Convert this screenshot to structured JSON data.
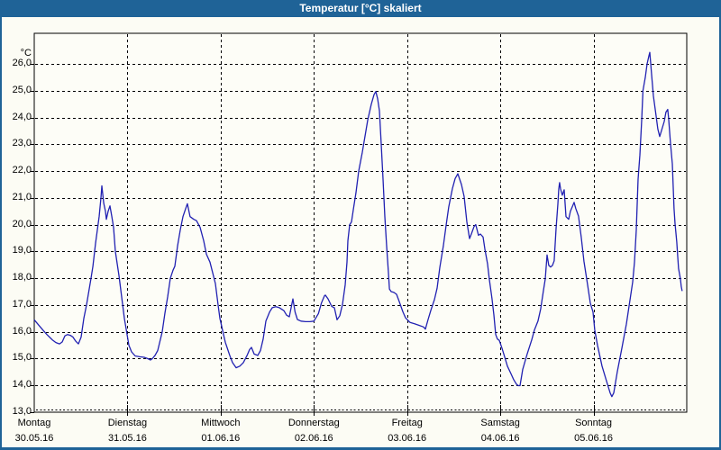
{
  "window": {
    "title": "Temperatur [°C] skaliert",
    "title_bar_color": "#1f6397",
    "background_color": "#fcfcf4"
  },
  "chart_data": {
    "type": "line",
    "title": "Temperatur [°C] skaliert",
    "y_unit": "°C",
    "ylim": [
      13.0,
      27.15
    ],
    "grid": "dashed",
    "legend": "none",
    "line_color": "#2121b2",
    "y_ticks": [
      {
        "v": 26,
        "label": "26,0"
      },
      {
        "v": 25,
        "label": "25,0"
      },
      {
        "v": 24,
        "label": "24,0"
      },
      {
        "v": 23,
        "label": "23,0"
      },
      {
        "v": 22,
        "label": "22,0"
      },
      {
        "v": 21,
        "label": "21,0"
      },
      {
        "v": 20,
        "label": "20,0"
      },
      {
        "v": 19,
        "label": "19,0"
      },
      {
        "v": 18,
        "label": "18,0"
      },
      {
        "v": 17,
        "label": "17,0"
      },
      {
        "v": 16,
        "label": "16,0"
      },
      {
        "v": 15,
        "label": "15,0"
      },
      {
        "v": 14,
        "label": "14,0"
      },
      {
        "v": 13,
        "label": "13,0"
      }
    ],
    "x_days": [
      {
        "name": "Montag",
        "date": "30.05.16"
      },
      {
        "name": "Dienstag",
        "date": "31.05.16"
      },
      {
        "name": "Mittwoch",
        "date": "01.06.16"
      },
      {
        "name": "Donnerstag",
        "date": "02.06.16"
      },
      {
        "name": "Freitag",
        "date": "03.06.16"
      },
      {
        "name": "Samstag",
        "date": "04.06.16"
      },
      {
        "name": "Sonntag",
        "date": "05.06.16"
      }
    ],
    "series": [
      {
        "name": "Temperatur [°C]",
        "x_unit": "days_since_30.05.16_00:00",
        "points": [
          [
            0.0,
            16.45
          ],
          [
            0.048,
            16.25
          ],
          [
            0.097,
            16.05
          ],
          [
            0.135,
            15.9
          ],
          [
            0.164,
            15.8
          ],
          [
            0.193,
            15.7
          ],
          [
            0.232,
            15.6
          ],
          [
            0.271,
            15.55
          ],
          [
            0.3,
            15.62
          ],
          [
            0.329,
            15.85
          ],
          [
            0.358,
            15.9
          ],
          [
            0.387,
            15.87
          ],
          [
            0.416,
            15.8
          ],
          [
            0.445,
            15.65
          ],
          [
            0.474,
            15.55
          ],
          [
            0.503,
            15.8
          ],
          [
            0.532,
            16.5
          ],
          [
            0.561,
            17.0
          ],
          [
            0.58,
            17.4
          ],
          [
            0.609,
            18.0
          ],
          [
            0.629,
            18.45
          ],
          [
            0.657,
            19.3
          ],
          [
            0.677,
            19.8
          ],
          [
            0.696,
            20.3
          ],
          [
            0.715,
            21.0
          ],
          [
            0.725,
            21.45
          ],
          [
            0.745,
            20.8
          ],
          [
            0.764,
            20.5
          ],
          [
            0.773,
            20.2
          ],
          [
            0.793,
            20.5
          ],
          [
            0.812,
            20.7
          ],
          [
            0.832,
            20.3
          ],
          [
            0.851,
            19.9
          ],
          [
            0.87,
            19.0
          ],
          [
            0.909,
            18.1
          ],
          [
            0.938,
            17.3
          ],
          [
            0.967,
            16.5
          ],
          [
            0.996,
            15.9
          ],
          [
            1.015,
            15.5
          ],
          [
            1.044,
            15.25
          ],
          [
            1.083,
            15.1
          ],
          [
            1.131,
            15.07
          ],
          [
            1.18,
            15.05
          ],
          [
            1.218,
            15.0
          ],
          [
            1.247,
            14.95
          ],
          [
            1.267,
            15.0
          ],
          [
            1.296,
            15.12
          ],
          [
            1.325,
            15.3
          ],
          [
            1.373,
            16.0
          ],
          [
            1.402,
            16.7
          ],
          [
            1.431,
            17.3
          ],
          [
            1.46,
            18.0
          ],
          [
            1.489,
            18.3
          ],
          [
            1.508,
            18.45
          ],
          [
            1.537,
            19.2
          ],
          [
            1.566,
            19.8
          ],
          [
            1.595,
            20.3
          ],
          [
            1.624,
            20.6
          ],
          [
            1.643,
            20.78
          ],
          [
            1.672,
            20.3
          ],
          [
            1.711,
            20.2
          ],
          [
            1.74,
            20.15
          ],
          [
            1.779,
            19.9
          ],
          [
            1.818,
            19.4
          ],
          [
            1.847,
            18.9
          ],
          [
            1.885,
            18.6
          ],
          [
            1.914,
            18.2
          ],
          [
            1.943,
            17.8
          ],
          [
            1.972,
            17.0
          ],
          [
            1.992,
            16.5
          ],
          [
            2.011,
            16.2
          ],
          [
            2.03,
            15.9
          ],
          [
            2.05,
            15.61
          ],
          [
            2.098,
            15.11
          ],
          [
            2.127,
            14.85
          ],
          [
            2.166,
            14.66
          ],
          [
            2.205,
            14.72
          ],
          [
            2.243,
            14.85
          ],
          [
            2.282,
            15.11
          ],
          [
            2.311,
            15.34
          ],
          [
            2.33,
            15.42
          ],
          [
            2.359,
            15.17
          ],
          [
            2.398,
            15.12
          ],
          [
            2.427,
            15.3
          ],
          [
            2.456,
            15.73
          ],
          [
            2.485,
            16.4
          ],
          [
            2.524,
            16.74
          ],
          [
            2.553,
            16.9
          ],
          [
            2.591,
            16.94
          ],
          [
            2.63,
            16.9
          ],
          [
            2.678,
            16.79
          ],
          [
            2.707,
            16.62
          ],
          [
            2.736,
            16.56
          ],
          [
            2.775,
            17.23
          ],
          [
            2.798,
            16.74
          ],
          [
            2.823,
            16.46
          ],
          [
            2.862,
            16.4
          ],
          [
            2.91,
            16.38
          ],
          [
            2.958,
            16.38
          ],
          [
            3.0,
            16.4
          ],
          [
            3.048,
            16.68
          ],
          [
            3.08,
            17.07
          ],
          [
            3.114,
            17.35
          ],
          [
            3.123,
            17.37
          ],
          [
            3.152,
            17.23
          ],
          [
            3.191,
            16.95
          ],
          [
            3.22,
            16.9
          ],
          [
            3.249,
            16.45
          ],
          [
            3.278,
            16.6
          ],
          [
            3.307,
            17.02
          ],
          [
            3.336,
            17.75
          ],
          [
            3.355,
            18.6
          ],
          [
            3.365,
            19.4
          ],
          [
            3.384,
            20.0
          ],
          [
            3.403,
            20.1
          ],
          [
            3.423,
            20.55
          ],
          [
            3.452,
            21.2
          ],
          [
            3.481,
            22.0
          ],
          [
            3.519,
            22.7
          ],
          [
            3.548,
            23.3
          ],
          [
            3.577,
            23.9
          ],
          [
            3.616,
            24.5
          ],
          [
            3.645,
            24.85
          ],
          [
            3.664,
            24.97
          ],
          [
            3.684,
            24.7
          ],
          [
            3.703,
            24.25
          ],
          [
            3.722,
            23.0
          ],
          [
            3.742,
            21.7
          ],
          [
            3.761,
            20.3
          ],
          [
            3.78,
            19.2
          ],
          [
            3.8,
            18.2
          ],
          [
            3.81,
            17.6
          ],
          [
            3.829,
            17.5
          ],
          [
            3.858,
            17.47
          ],
          [
            3.887,
            17.4
          ],
          [
            3.916,
            17.13
          ],
          [
            3.954,
            16.75
          ],
          [
            3.983,
            16.52
          ],
          [
            4.032,
            16.35
          ],
          [
            4.08,
            16.3
          ],
          [
            4.128,
            16.24
          ],
          [
            4.177,
            16.18
          ],
          [
            4.196,
            16.1
          ],
          [
            4.225,
            16.46
          ],
          [
            4.254,
            16.8
          ],
          [
            4.293,
            17.2
          ],
          [
            4.322,
            17.63
          ],
          [
            4.351,
            18.4
          ],
          [
            4.389,
            19.2
          ],
          [
            4.418,
            19.95
          ],
          [
            4.447,
            20.66
          ],
          [
            4.486,
            21.35
          ],
          [
            4.515,
            21.72
          ],
          [
            4.544,
            21.9
          ],
          [
            4.583,
            21.5
          ],
          [
            4.612,
            21.05
          ],
          [
            4.641,
            20.1
          ],
          [
            4.67,
            19.48
          ],
          [
            4.689,
            19.65
          ],
          [
            4.718,
            19.93
          ],
          [
            4.737,
            20.0
          ],
          [
            4.766,
            19.6
          ],
          [
            4.786,
            19.65
          ],
          [
            4.815,
            19.54
          ],
          [
            4.834,
            19.09
          ],
          [
            4.863,
            18.53
          ],
          [
            4.882,
            17.97
          ],
          [
            4.911,
            17.24
          ],
          [
            4.931,
            16.63
          ],
          [
            4.95,
            15.9
          ],
          [
            4.969,
            15.73
          ],
          [
            4.989,
            15.68
          ],
          [
            5.018,
            15.39
          ],
          [
            5.047,
            15.06
          ],
          [
            5.076,
            14.72
          ],
          [
            5.114,
            14.44
          ],
          [
            5.143,
            14.22
          ],
          [
            5.172,
            14.05
          ],
          [
            5.192,
            13.99
          ],
          [
            5.211,
            13.99
          ],
          [
            5.24,
            14.6
          ],
          [
            5.288,
            15.17
          ],
          [
            5.337,
            15.7
          ],
          [
            5.366,
            16.07
          ],
          [
            5.404,
            16.4
          ],
          [
            5.433,
            16.85
          ],
          [
            5.462,
            17.52
          ],
          [
            5.482,
            17.97
          ],
          [
            5.501,
            18.87
          ],
          [
            5.52,
            18.48
          ],
          [
            5.54,
            18.42
          ],
          [
            5.559,
            18.48
          ],
          [
            5.578,
            18.65
          ],
          [
            5.598,
            19.85
          ],
          [
            5.617,
            20.77
          ],
          [
            5.627,
            21.33
          ],
          [
            5.636,
            21.57
          ],
          [
            5.646,
            21.33
          ],
          [
            5.665,
            21.1
          ],
          [
            5.685,
            21.3
          ],
          [
            5.704,
            20.3
          ],
          [
            5.733,
            20.2
          ],
          [
            5.752,
            20.5
          ],
          [
            5.791,
            20.83
          ],
          [
            5.81,
            20.6
          ],
          [
            5.839,
            20.32
          ],
          [
            5.868,
            19.54
          ],
          [
            5.897,
            18.64
          ],
          [
            5.936,
            17.75
          ],
          [
            5.965,
            17.07
          ],
          [
            5.994,
            16.74
          ],
          [
            6.013,
            16.07
          ],
          [
            6.042,
            15.51
          ],
          [
            6.091,
            14.72
          ],
          [
            6.139,
            14.17
          ],
          [
            6.178,
            13.72
          ],
          [
            6.197,
            13.58
          ],
          [
            6.217,
            13.72
          ],
          [
            6.255,
            14.5
          ],
          [
            6.304,
            15.39
          ],
          [
            6.352,
            16.29
          ],
          [
            6.381,
            16.96
          ],
          [
            6.42,
            17.86
          ],
          [
            6.439,
            18.6
          ],
          [
            6.459,
            19.8
          ],
          [
            6.478,
            21.7
          ],
          [
            6.497,
            22.6
          ],
          [
            6.517,
            23.9
          ],
          [
            6.53,
            25.0
          ],
          [
            6.555,
            25.5
          ],
          [
            6.575,
            26.0
          ],
          [
            6.594,
            26.3
          ],
          [
            6.604,
            26.43
          ],
          [
            6.623,
            25.6
          ],
          [
            6.642,
            24.8
          ],
          [
            6.671,
            24.06
          ],
          [
            6.69,
            23.57
          ],
          [
            6.71,
            23.29
          ],
          [
            6.729,
            23.51
          ],
          [
            6.758,
            23.85
          ],
          [
            6.777,
            24.2
          ],
          [
            6.796,
            24.3
          ],
          [
            6.806,
            23.96
          ],
          [
            6.825,
            23.06
          ],
          [
            6.845,
            22.27
          ],
          [
            6.855,
            21.38
          ],
          [
            6.864,
            20.6
          ],
          [
            6.874,
            20.04
          ],
          [
            6.893,
            19.36
          ],
          [
            6.903,
            18.8
          ],
          [
            6.912,
            18.36
          ],
          [
            6.932,
            17.97
          ],
          [
            6.941,
            17.69
          ],
          [
            6.951,
            17.52
          ]
        ]
      }
    ]
  }
}
